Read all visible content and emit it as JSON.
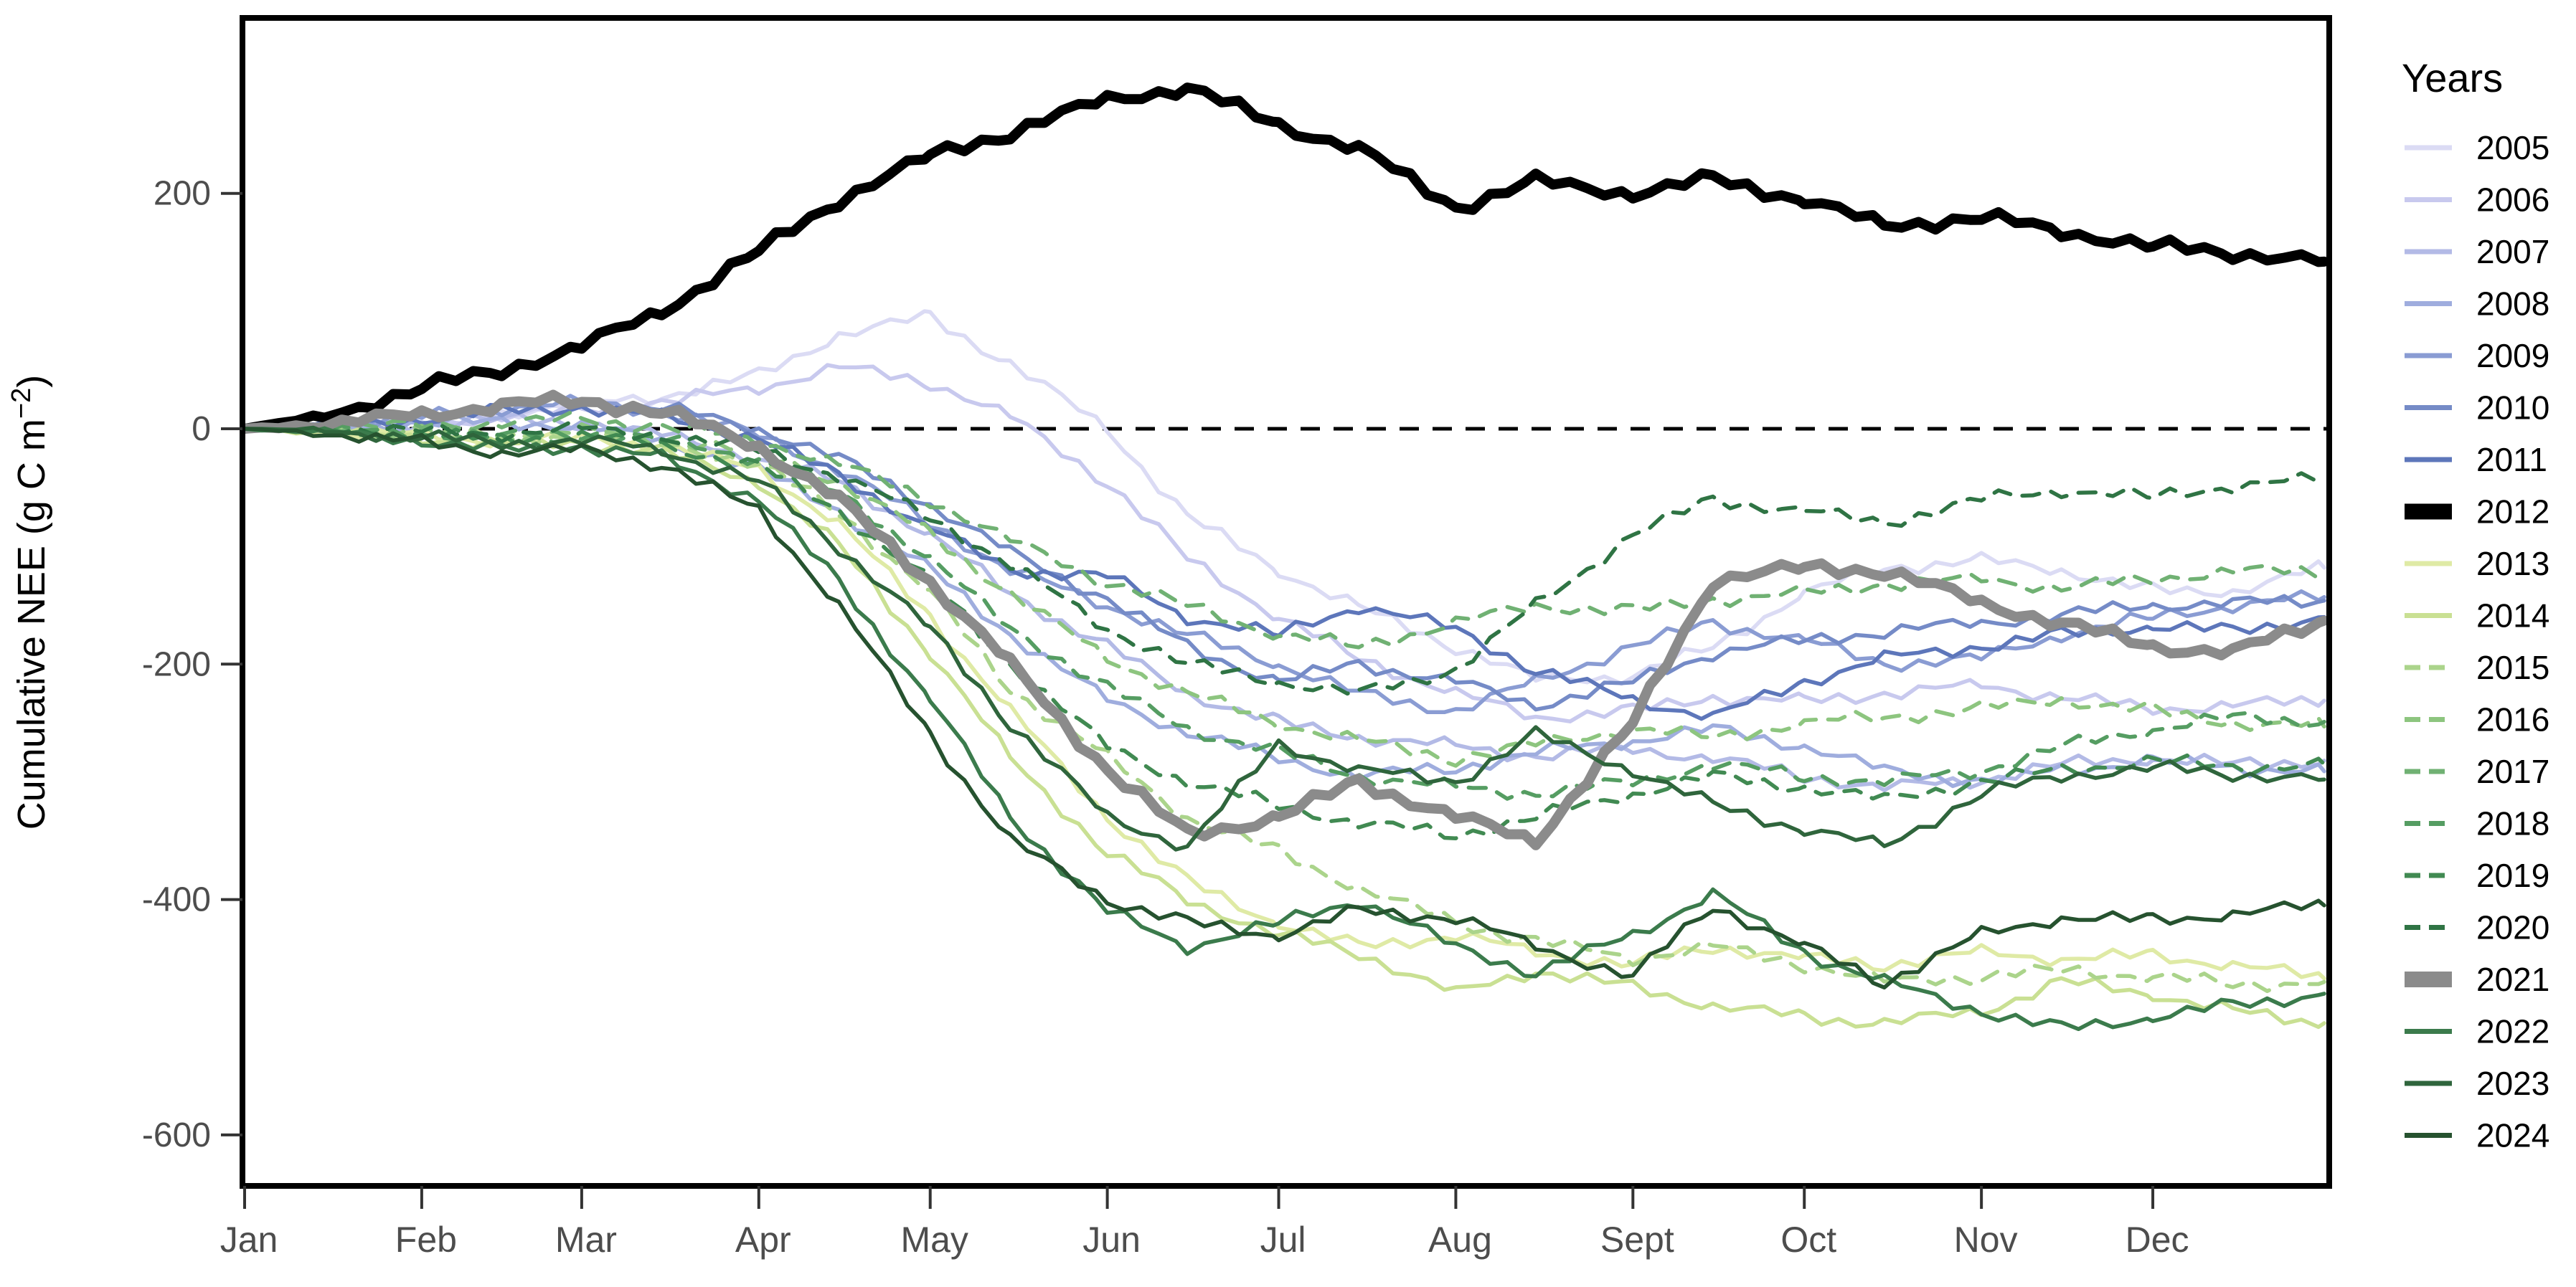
{
  "figure": {
    "background": "#ffffff",
    "y_axis": {
      "title_main": "Cumulative NEE (g C m",
      "title_sup": "−2",
      "title_end": ")",
      "ticks": [
        200,
        0,
        -200,
        -400,
        -600
      ]
    },
    "x_axis": {
      "labels": [
        "Jan",
        "Feb",
        "Mar",
        "Apr",
        "May",
        "Jun",
        "Jul",
        "Aug",
        "Sept",
        "Oct",
        "Nov",
        "Dec"
      ],
      "tick_days": [
        1,
        32,
        60,
        91,
        121,
        152,
        182,
        213,
        244,
        274,
        305,
        335
      ]
    },
    "zero_line": {
      "value": 0,
      "style": "dashed",
      "color": "#000000"
    }
  },
  "legend": {
    "title": "Years"
  },
  "chart_data": {
    "type": "line",
    "title": "",
    "xlabel": "",
    "ylabel": "Cumulative NEE (g C m-2)",
    "x_unit": "day_of_year",
    "x_range": [
      1,
      365
    ],
    "ylim": [
      -644,
      349
    ],
    "y_ticks": [
      200,
      0,
      -200,
      -400,
      -600
    ],
    "grid": false,
    "legend_position": "right",
    "anchor_days": [
      1,
      15,
      32,
      46,
      60,
      74,
      91,
      105,
      121,
      135,
      152,
      166,
      182,
      196,
      213,
      227,
      244,
      258,
      274,
      288,
      305,
      319,
      335,
      349,
      365
    ],
    "series": [
      {
        "name": "2005",
        "color": "#dbdbf4",
        "style": "solid",
        "width": 5.5,
        "values": [
          0,
          3,
          8,
          14,
          20,
          28,
          45,
          80,
          95,
          55,
          0,
          -75,
          -120,
          -152,
          -185,
          -213,
          -210,
          -185,
          -140,
          -118,
          -112,
          -120,
          -138,
          -138,
          -118
        ]
      },
      {
        "name": "2006",
        "color": "#c8c9ee",
        "style": "solid",
        "width": 5.5,
        "values": [
          0,
          2,
          6,
          10,
          16,
          22,
          35,
          52,
          40,
          10,
          -45,
          -110,
          -160,
          -195,
          -225,
          -245,
          -240,
          -228,
          -232,
          -225,
          -218,
          -228,
          -238,
          -235,
          -231
        ]
      },
      {
        "name": "2007",
        "color": "#b3bae6",
        "style": "solid",
        "width": 5.5,
        "values": [
          0,
          2,
          5,
          8,
          5,
          -5,
          -25,
          -45,
          -90,
          -140,
          -185,
          -225,
          -250,
          -262,
          -270,
          -278,
          -272,
          -280,
          -295,
          -305,
          -298,
          -285,
          -280,
          -285,
          -282
        ]
      },
      {
        "name": "2008",
        "color": "#9fadde",
        "style": "solid",
        "width": 5.5,
        "values": [
          0,
          1,
          4,
          6,
          2,
          -10,
          -35,
          -70,
          -120,
          -175,
          -230,
          -258,
          -280,
          -295,
          -288,
          -275,
          -265,
          -255,
          -270,
          -290,
          -300,
          -290,
          -282,
          -288,
          -291
        ]
      },
      {
        "name": "2009",
        "color": "#8a9cd3",
        "style": "solid",
        "width": 5.5,
        "values": [
          0,
          3,
          10,
          18,
          22,
          15,
          -5,
          -35,
          -80,
          -120,
          -150,
          -175,
          -200,
          -225,
          -240,
          -215,
          -185,
          -165,
          -180,
          -200,
          -195,
          -175,
          -160,
          -150,
          -143
        ]
      },
      {
        "name": "2010",
        "color": "#758bc7",
        "style": "solid",
        "width": 5.5,
        "values": [
          0,
          4,
          12,
          20,
          25,
          18,
          0,
          -25,
          -65,
          -105,
          -145,
          -185,
          -215,
          -200,
          -215,
          -235,
          -215,
          -190,
          -180,
          -172,
          -165,
          -158,
          -150,
          -148,
          -146
        ]
      },
      {
        "name": "2011",
        "color": "#5d76ba",
        "style": "solid",
        "width": 5.5,
        "values": [
          0,
          3,
          8,
          15,
          18,
          10,
          -8,
          -40,
          -85,
          -120,
          -125,
          -160,
          -175,
          -150,
          -170,
          -205,
          -230,
          -245,
          -215,
          -195,
          -185,
          -175,
          -168,
          -172,
          -160
        ]
      },
      {
        "name": "2012",
        "color": "#000000",
        "style": "solid",
        "width": 14,
        "values": [
          0,
          10,
          35,
          50,
          70,
          100,
          151,
          195,
          232,
          252,
          280,
          290,
          258,
          238,
          188,
          210,
          200,
          212,
          195,
          172,
          180,
          168,
          155,
          150,
          142
        ]
      },
      {
        "name": "2013",
        "color": "#dfeaa5",
        "style": "solid",
        "width": 5.5,
        "values": [
          0,
          -2,
          -6,
          -10,
          -8,
          -15,
          -35,
          -80,
          -160,
          -240,
          -330,
          -385,
          -420,
          -440,
          -430,
          -445,
          -455,
          -440,
          -450,
          -455,
          -445,
          -450,
          -448,
          -455,
          -467
        ]
      },
      {
        "name": "2014",
        "color": "#c9e093",
        "style": "solid",
        "width": 5.5,
        "values": [
          0,
          -3,
          -8,
          -14,
          -12,
          -20,
          -45,
          -100,
          -190,
          -280,
          -360,
          -400,
          -430,
          -445,
          -480,
          -460,
          -475,
          -490,
          -500,
          -505,
          -495,
          -470,
          -480,
          -495,
          -505
        ]
      },
      {
        "name": "2015",
        "color": "#abd48b",
        "style": "dashed",
        "width": 5.5,
        "values": [
          0,
          -2,
          -5,
          -8,
          -5,
          -12,
          -30,
          -70,
          -140,
          -220,
          -280,
          -330,
          -360,
          -390,
          -420,
          -435,
          -450,
          -440,
          -455,
          -470,
          -465,
          -460,
          -465,
          -472,
          -470
        ]
      },
      {
        "name": "2016",
        "color": "#8dc57f",
        "style": "dashed",
        "width": 5.5,
        "values": [
          0,
          -1,
          -3,
          -6,
          -2,
          -8,
          -20,
          -45,
          -90,
          -140,
          -195,
          -225,
          -250,
          -265,
          -280,
          -268,
          -255,
          -262,
          -250,
          -245,
          -238,
          -230,
          -240,
          -250,
          -253
        ]
      },
      {
        "name": "2017",
        "color": "#70b173",
        "style": "dashed",
        "width": 5.5,
        "values": [
          0,
          1,
          3,
          5,
          8,
          2,
          -10,
          -30,
          -60,
          -95,
          -130,
          -150,
          -175,
          -185,
          -165,
          -150,
          -155,
          -145,
          -140,
          -132,
          -128,
          -135,
          -128,
          -120,
          -123
        ]
      },
      {
        "name": "2018",
        "color": "#559d62",
        "style": "dashed",
        "width": 5.5,
        "values": [
          0,
          -1,
          -4,
          -7,
          -3,
          -10,
          -25,
          -55,
          -110,
          -170,
          -220,
          -255,
          -275,
          -295,
          -305,
          -310,
          -300,
          -285,
          -295,
          -300,
          -290,
          -270,
          -255,
          -245,
          -249
        ]
      },
      {
        "name": "2019",
        "color": "#418a52",
        "style": "dashed",
        "width": 5.5,
        "values": [
          0,
          -2,
          -6,
          -9,
          -6,
          -14,
          -32,
          -70,
          -130,
          -200,
          -270,
          -300,
          -320,
          -335,
          -345,
          -330,
          -310,
          -295,
          -305,
          -315,
          -300,
          -290,
          -282,
          -288,
          -285
        ]
      },
      {
        "name": "2020",
        "color": "#2f7444",
        "style": "dashed",
        "width": 5.5,
        "values": [
          0,
          0,
          -2,
          -4,
          0,
          -6,
          -18,
          -40,
          -75,
          -115,
          -170,
          -200,
          -215,
          -225,
          -205,
          -150,
          -90,
          -60,
          -70,
          -80,
          -60,
          -52,
          -58,
          -48,
          -43
        ]
      },
      {
        "name": "2021",
        "color": "#8b8b8b",
        "style": "solid",
        "width": 14,
        "values": [
          0,
          4,
          12,
          20,
          24,
          15,
          -15,
          -60,
          -130,
          -200,
          -290,
          -345,
          -330,
          -300,
          -330,
          -350,
          -250,
          -128,
          -118,
          -120,
          -148,
          -165,
          -185,
          -190,
          -163
        ]
      },
      {
        "name": "2022",
        "color": "#3b7b4c",
        "style": "solid",
        "width": 5.5,
        "values": [
          0,
          -3,
          -10,
          -18,
          -15,
          -25,
          -60,
          -130,
          -230,
          -330,
          -410,
          -440,
          -420,
          -400,
          -440,
          -462,
          -430,
          -395,
          -445,
          -470,
          -495,
          -510,
          -500,
          -490,
          -480
        ]
      },
      {
        "name": "2023",
        "color": "#2f653c",
        "style": "solid",
        "width": 5.5,
        "values": [
          0,
          -2,
          -7,
          -12,
          -10,
          -18,
          -45,
          -100,
          -170,
          -250,
          -330,
          -355,
          -268,
          -290,
          -300,
          -260,
          -290,
          -320,
          -340,
          -355,
          -310,
          -295,
          -288,
          -293,
          -298
        ]
      },
      {
        "name": "2024",
        "color": "#26522f",
        "style": "solid",
        "width": 5.5,
        "values": [
          0,
          -4,
          -12,
          -20,
          -18,
          -30,
          -70,
          -150,
          -260,
          -350,
          -400,
          -420,
          -430,
          -410,
          -415,
          -440,
          -465,
          -405,
          -440,
          -470,
          -430,
          -415,
          -418,
          -412,
          -405
        ]
      }
    ]
  }
}
